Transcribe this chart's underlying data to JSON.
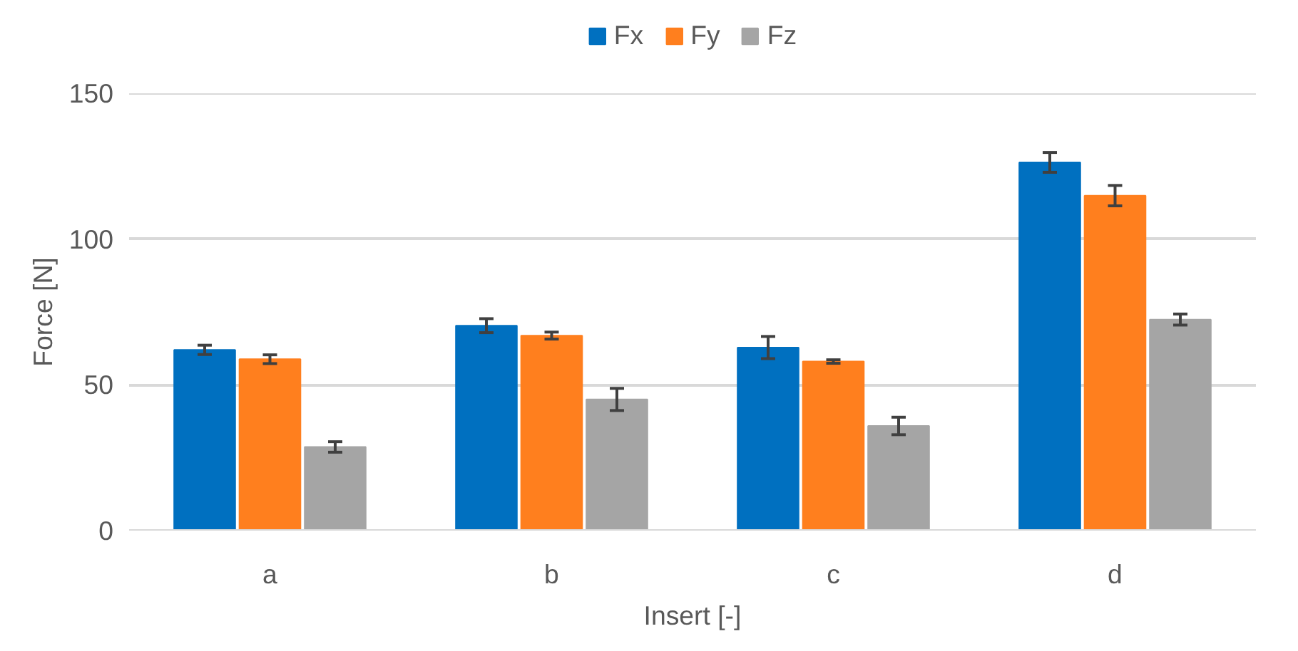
{
  "chart_data": {
    "type": "bar",
    "xlabel": "Insert [-]",
    "ylabel": "Force [N]",
    "categories": [
      "a",
      "b",
      "c",
      "d"
    ],
    "series": [
      {
        "name": "Fx",
        "color": "#0070c0",
        "values": [
          62,
          70.3,
          62.8,
          126.3
        ],
        "errors": [
          1.6,
          2.4,
          3.8,
          3.4
        ]
      },
      {
        "name": "Fy",
        "color": "#ff7f1e",
        "values": [
          58.8,
          66.9,
          58,
          114.9
        ],
        "errors": [
          1.5,
          1.2,
          0.6,
          3.5
        ]
      },
      {
        "name": "Fz",
        "color": "#a5a5a5",
        "values": [
          28.7,
          45,
          35.9,
          72.4
        ],
        "errors": [
          1.8,
          3.8,
          3,
          1.9
        ]
      }
    ],
    "ylim": [
      0,
      150
    ],
    "yticks": [
      0,
      50,
      100,
      150
    ],
    "grid": "y",
    "legend": "top"
  }
}
